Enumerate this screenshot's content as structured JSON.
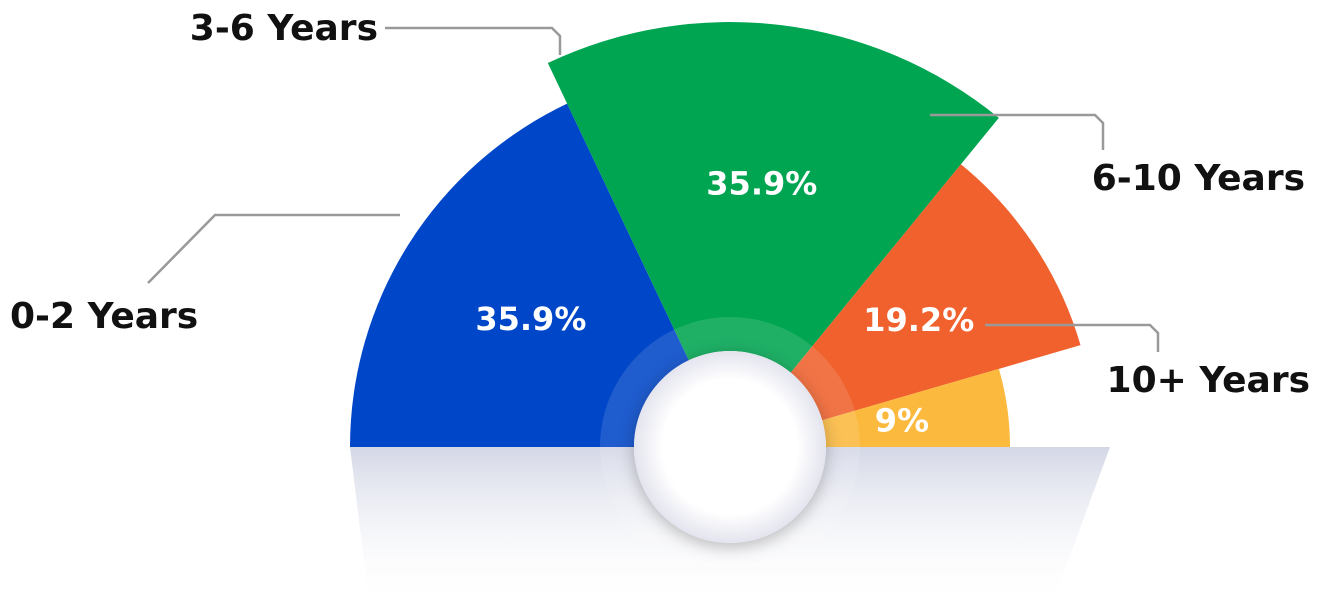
{
  "chart_data": {
    "type": "pie",
    "categories": [
      "0-2 Years",
      "3-6 Years",
      "6-10 Years",
      "10+ Years"
    ],
    "values": [
      35.9,
      35.9,
      19.2,
      9
    ],
    "value_labels": [
      "35.9%",
      "35.9%",
      "19.2%",
      "9%"
    ],
    "colors": [
      "#0046c8",
      "#00a551",
      "#f0612d",
      "#fbb93e"
    ]
  }
}
